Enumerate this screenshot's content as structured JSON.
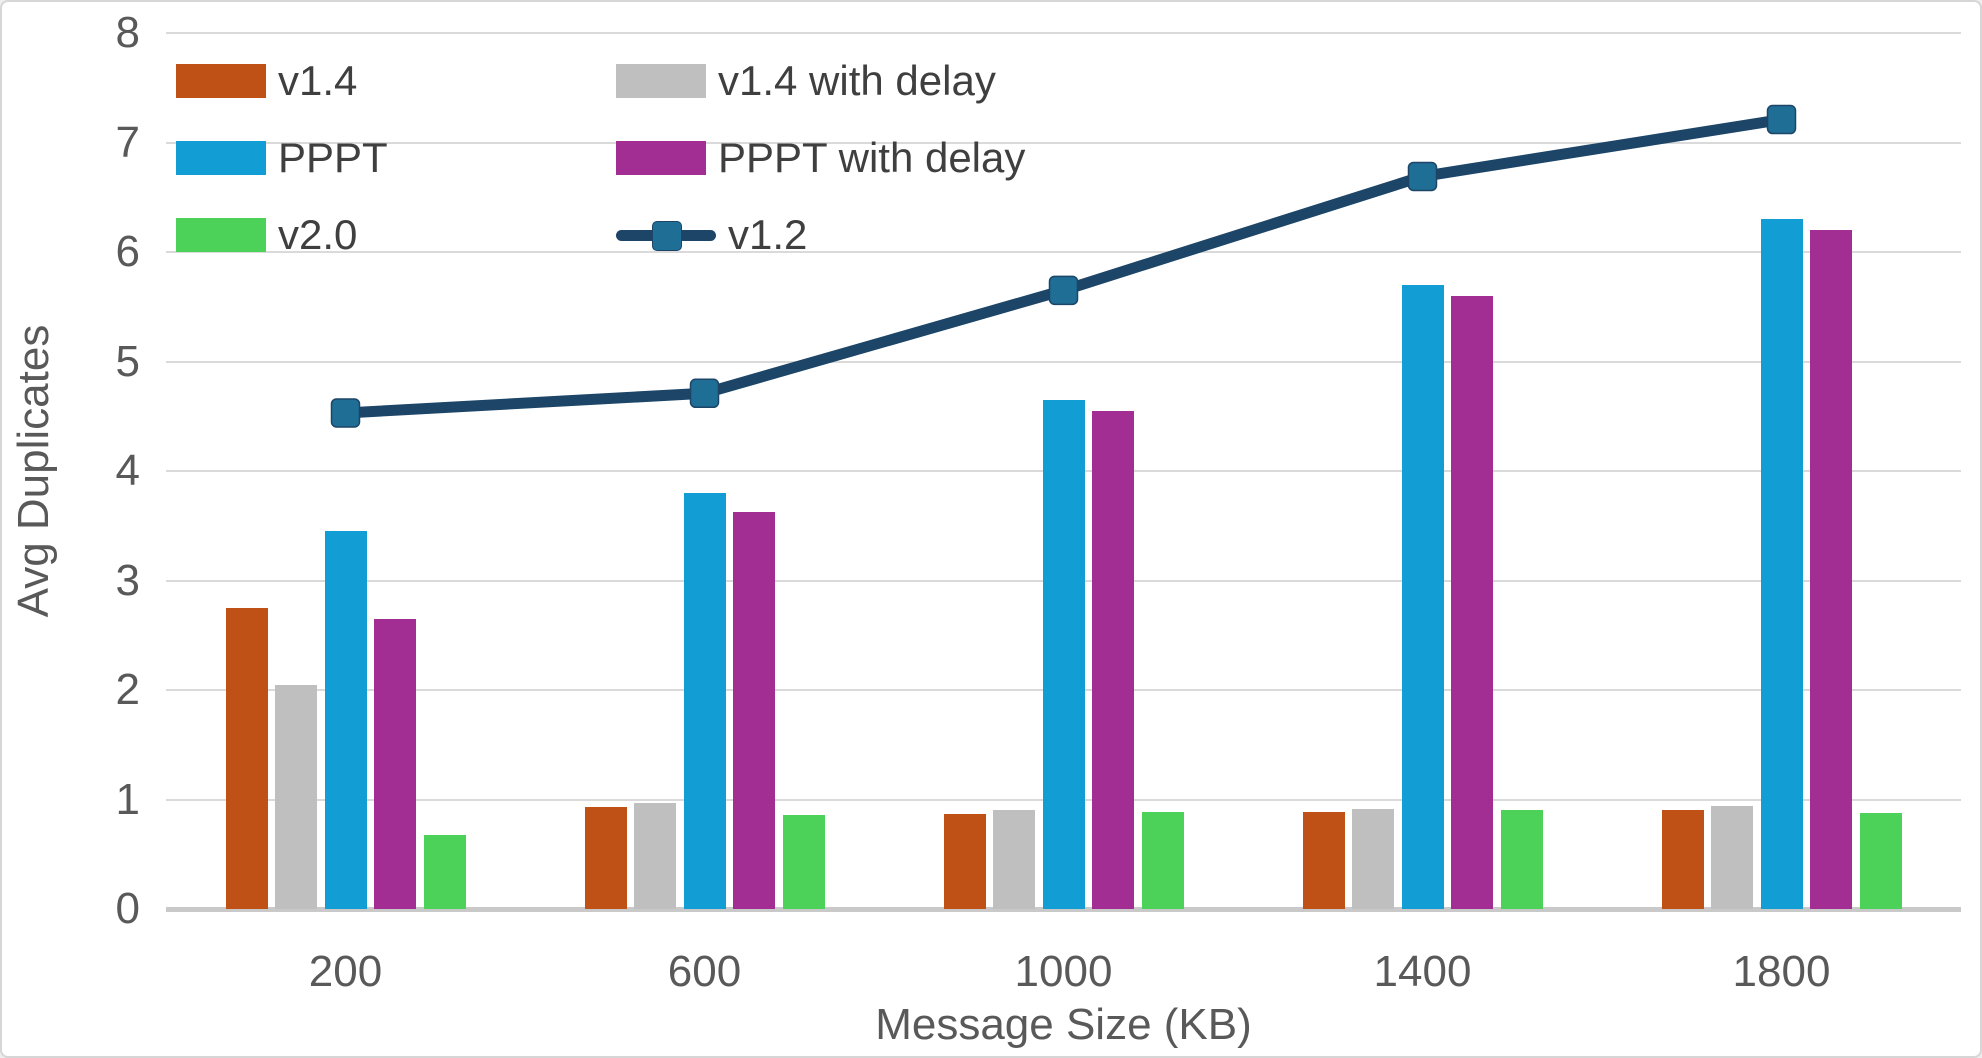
{
  "chart_data": {
    "type": "bar",
    "subtype": "grouped bars with line overlay",
    "title": "",
    "xlabel": "Message Size (KB)",
    "ylabel": "Avg Duplicates",
    "categories": [
      "200",
      "600",
      "1000",
      "1400",
      "1800"
    ],
    "y_ticks": [
      "0",
      "1",
      "2",
      "3",
      "4",
      "5",
      "6",
      "7",
      "8"
    ],
    "ylim": [
      0,
      8
    ],
    "grid": "horizontal",
    "legend_position": "inside top-left, two columns",
    "bar_series": [
      {
        "name": "v1.4",
        "color": "#C05116",
        "values": [
          2.75,
          0.93,
          0.87,
          0.89,
          0.9
        ]
      },
      {
        "name": "v1.4 with delay",
        "color": "#BFBFBF",
        "values": [
          2.05,
          0.97,
          0.9,
          0.91,
          0.94
        ]
      },
      {
        "name": "PPPT",
        "color": "#129DD5",
        "values": [
          3.45,
          3.8,
          4.65,
          5.7,
          6.3
        ]
      },
      {
        "name": "PPPT with delay",
        "color": "#A22D93",
        "values": [
          2.65,
          3.63,
          4.55,
          5.6,
          6.2
        ]
      },
      {
        "name": "v2.0",
        "color": "#4CD159",
        "values": [
          0.68,
          0.86,
          0.89,
          0.9,
          0.88
        ]
      }
    ],
    "line_series": [
      {
        "name": "v1.2",
        "color": "#1C4567",
        "marker": "square",
        "marker_color": "#1E6E96",
        "values": [
          4.53,
          4.71,
          5.65,
          6.69,
          7.21
        ]
      }
    ],
    "legend": [
      {
        "label": "v1.4",
        "swatch": "bar",
        "color": "#C05116"
      },
      {
        "label": "v1.4 with delay",
        "swatch": "bar",
        "color": "#BFBFBF"
      },
      {
        "label": "PPPT",
        "swatch": "bar",
        "color": "#129DD5"
      },
      {
        "label": "PPPT with delay",
        "swatch": "bar",
        "color": "#A22D93"
      },
      {
        "label": "v2.0",
        "swatch": "bar",
        "color": "#4CD159"
      },
      {
        "label": "v1.2",
        "swatch": "line",
        "color": "#1C4567",
        "marker_color": "#1E6E96"
      }
    ],
    "colors": {
      "gridline": "#DADADA",
      "axis_line": "#C9C9C9",
      "axis_text": "#595959",
      "legend_text": "#3F3F3F",
      "background": "#FFFFFF"
    }
  }
}
